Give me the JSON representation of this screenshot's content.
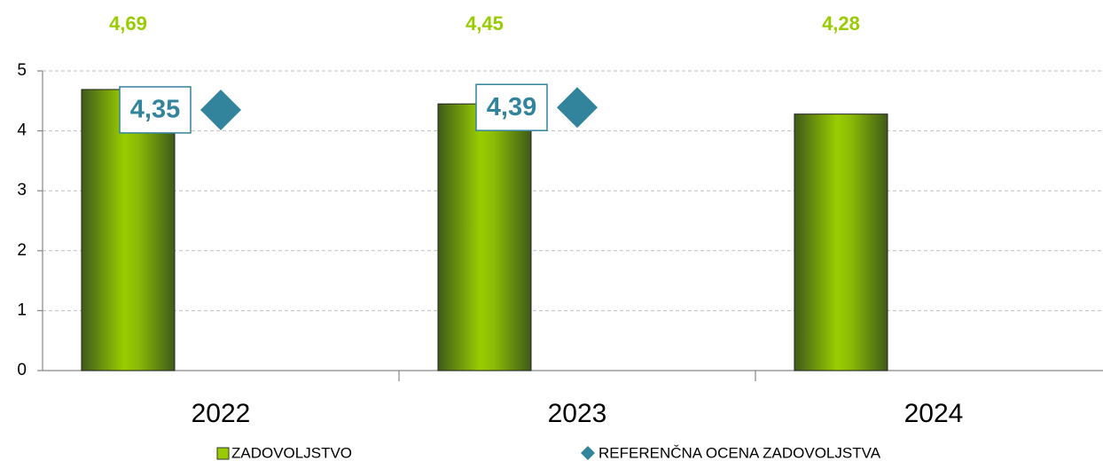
{
  "chart_data": {
    "type": "bar",
    "categories": [
      "2022",
      "2023",
      "2024"
    ],
    "series": [
      {
        "name": "ZADOVOLJSTVO",
        "color": "#99cc00",
        "values": [
          4.69,
          4.45,
          4.28
        ],
        "value_labels": [
          "4,69",
          "4,45",
          "4,28"
        ]
      },
      {
        "name": "REFERENČNA OCENA ZADOVOLJSTVA",
        "color": "#31849b",
        "marker": "diamond",
        "values": [
          4.35,
          4.39,
          null
        ],
        "value_labels": [
          "4,35",
          "4,39",
          null
        ]
      }
    ],
    "ylim": [
      0,
      5
    ],
    "yticks": [
      0,
      1,
      2,
      3,
      4,
      5
    ],
    "grid": true,
    "legend": "bottom"
  }
}
